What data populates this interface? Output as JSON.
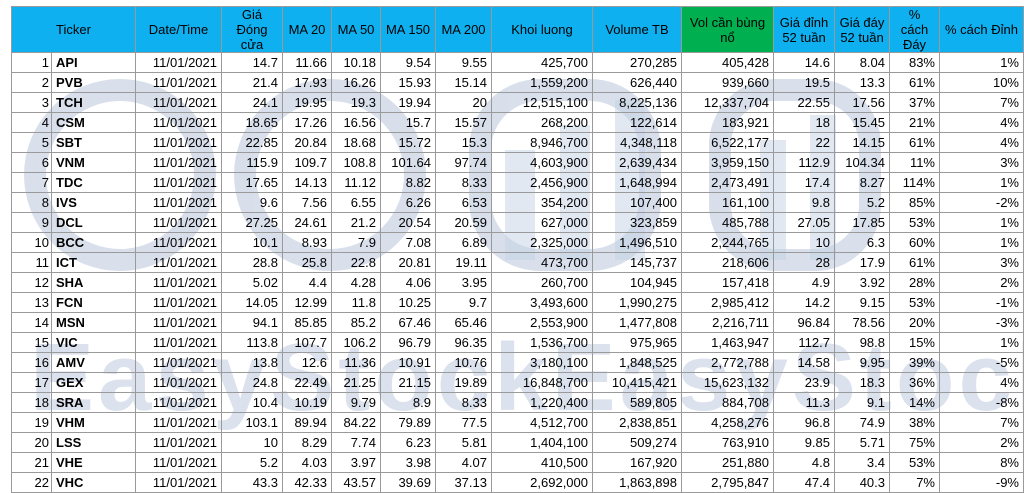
{
  "watermark": {
    "text": "EasyStockEasyStock",
    "color": "#b8c2d8"
  },
  "colors": {
    "header": "#0fb0f0",
    "header_highlight": "#00b050"
  },
  "table": {
    "headers": [
      "Ticker",
      "Date/Time",
      "Giá Đóng cửa",
      "MA 20",
      "MA 50",
      "MA 150",
      "MA 200",
      "Khoi luong",
      "Volume TB",
      "Vol cần bùng nổ",
      "Giá đỉnh 52 tuần",
      "Giá đáy 52 tuần",
      "% cách Đáy",
      "% cách Đỉnh"
    ],
    "rows": [
      [
        "1",
        "API",
        "11/01/2021",
        "14.7",
        "11.66",
        "10.18",
        "9.54",
        "9.55",
        "425,700",
        "270,285",
        "405,428",
        "14.6",
        "8.04",
        "83%",
        "1%"
      ],
      [
        "2",
        "PVB",
        "11/01/2021",
        "21.4",
        "17.93",
        "16.26",
        "15.93",
        "15.14",
        "1,559,200",
        "626,440",
        "939,660",
        "19.5",
        "13.3",
        "61%",
        "10%"
      ],
      [
        "3",
        "TCH",
        "11/01/2021",
        "24.1",
        "19.95",
        "19.3",
        "19.94",
        "20",
        "12,515,100",
        "8,225,136",
        "12,337,704",
        "22.55",
        "17.56",
        "37%",
        "7%"
      ],
      [
        "4",
        "CSM",
        "11/01/2021",
        "18.65",
        "17.26",
        "16.56",
        "15.7",
        "15.57",
        "268,200",
        "122,614",
        "183,921",
        "18",
        "15.45",
        "21%",
        "4%"
      ],
      [
        "5",
        "SBT",
        "11/01/2021",
        "22.85",
        "20.84",
        "18.68",
        "15.72",
        "15.3",
        "8,946,700",
        "4,348,118",
        "6,522,177",
        "22",
        "14.15",
        "61%",
        "4%"
      ],
      [
        "6",
        "VNM",
        "11/01/2021",
        "115.9",
        "109.7",
        "108.8",
        "101.64",
        "97.74",
        "4,603,900",
        "2,639,434",
        "3,959,150",
        "112.9",
        "104.34",
        "11%",
        "3%"
      ],
      [
        "7",
        "TDC",
        "11/01/2021",
        "17.65",
        "14.13",
        "11.12",
        "8.82",
        "8.33",
        "2,456,900",
        "1,648,994",
        "2,473,491",
        "17.4",
        "8.27",
        "114%",
        "1%"
      ],
      [
        "8",
        "IVS",
        "11/01/2021",
        "9.6",
        "7.56",
        "6.55",
        "6.26",
        "6.53",
        "354,200",
        "107,400",
        "161,100",
        "9.8",
        "5.2",
        "85%",
        "-2%"
      ],
      [
        "9",
        "DCL",
        "11/01/2021",
        "27.25",
        "24.61",
        "21.2",
        "20.54",
        "20.59",
        "627,000",
        "323,859",
        "485,788",
        "27.05",
        "17.85",
        "53%",
        "1%"
      ],
      [
        "10",
        "BCC",
        "11/01/2021",
        "10.1",
        "8.93",
        "7.9",
        "7.08",
        "6.89",
        "2,325,000",
        "1,496,510",
        "2,244,765",
        "10",
        "6.3",
        "60%",
        "1%"
      ],
      [
        "11",
        "ICT",
        "11/01/2021",
        "28.8",
        "25.8",
        "22.8",
        "20.81",
        "19.11",
        "473,700",
        "145,737",
        "218,606",
        "28",
        "17.9",
        "61%",
        "3%"
      ],
      [
        "12",
        "SHA",
        "11/01/2021",
        "5.02",
        "4.4",
        "4.28",
        "4.06",
        "3.95",
        "260,700",
        "104,945",
        "157,418",
        "4.9",
        "3.92",
        "28%",
        "2%"
      ],
      [
        "13",
        "FCN",
        "11/01/2021",
        "14.05",
        "12.99",
        "11.8",
        "10.25",
        "9.7",
        "3,493,600",
        "1,990,275",
        "2,985,412",
        "14.2",
        "9.15",
        "53%",
        "-1%"
      ],
      [
        "14",
        "MSN",
        "11/01/2021",
        "94.1",
        "85.85",
        "85.2",
        "67.46",
        "65.46",
        "2,553,900",
        "1,477,808",
        "2,216,711",
        "96.84",
        "78.56",
        "20%",
        "-3%"
      ],
      [
        "15",
        "VIC",
        "11/01/2021",
        "113.8",
        "107.7",
        "106.2",
        "96.79",
        "96.35",
        "1,536,700",
        "975,965",
        "1,463,947",
        "112.7",
        "98.8",
        "15%",
        "1%"
      ],
      [
        "16",
        "AMV",
        "11/01/2021",
        "13.8",
        "12.6",
        "11.36",
        "10.91",
        "10.76",
        "3,180,100",
        "1,848,525",
        "2,772,788",
        "14.58",
        "9.95",
        "39%",
        "-5%"
      ],
      [
        "17",
        "GEX",
        "11/01/2021",
        "24.8",
        "22.49",
        "21.25",
        "21.15",
        "19.89",
        "16,848,700",
        "10,415,421",
        "15,623,132",
        "23.9",
        "18.3",
        "36%",
        "4%"
      ],
      [
        "18",
        "SRA",
        "11/01/2021",
        "10.4",
        "10.19",
        "9.79",
        "8.9",
        "8.33",
        "1,220,400",
        "589,805",
        "884,708",
        "11.3",
        "9.1",
        "14%",
        "-8%"
      ],
      [
        "19",
        "VHM",
        "11/01/2021",
        "103.1",
        "89.94",
        "84.22",
        "79.89",
        "77.5",
        "4,512,700",
        "2,838,851",
        "4,258,276",
        "96.8",
        "74.9",
        "38%",
        "7%"
      ],
      [
        "20",
        "LSS",
        "11/01/2021",
        "10",
        "8.29",
        "7.74",
        "6.23",
        "5.81",
        "1,404,100",
        "509,274",
        "763,910",
        "9.85",
        "5.71",
        "75%",
        "2%"
      ],
      [
        "21",
        "VHE",
        "11/01/2021",
        "5.2",
        "4.03",
        "3.97",
        "3.98",
        "4.07",
        "410,500",
        "167,920",
        "251,880",
        "4.8",
        "3.4",
        "53%",
        "8%"
      ],
      [
        "22",
        "VHC",
        "11/01/2021",
        "43.3",
        "42.33",
        "43.57",
        "39.69",
        "37.13",
        "2,692,000",
        "1,863,898",
        "2,795,847",
        "47.4",
        "40.3",
        "7%",
        "-9%"
      ]
    ]
  }
}
